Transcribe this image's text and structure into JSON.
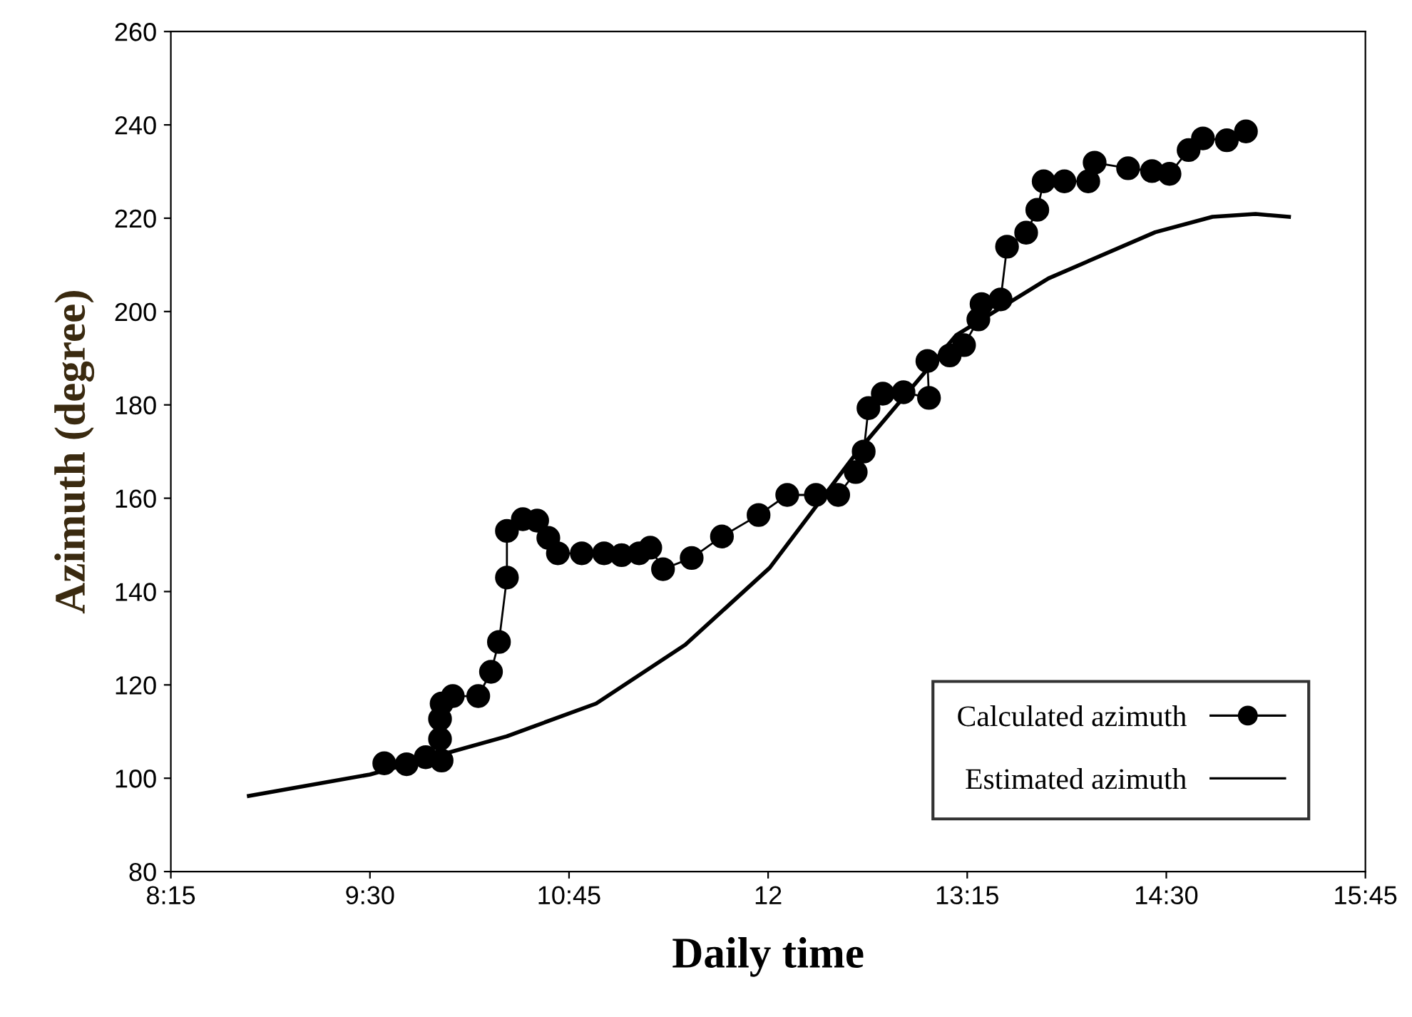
{
  "chart_data": {
    "type": "line",
    "xlabel": "Daily time",
    "ylabel": "Azimuth (degree)",
    "xlim": [
      8.25,
      15.75
    ],
    "xticks": [
      {
        "value": 8.25,
        "label": "8:15"
      },
      {
        "value": 9.5,
        "label": "9:30"
      },
      {
        "value": 10.75,
        "label": "10:45"
      },
      12,
      {
        "value": 13.25,
        "label": "13:15"
      },
      {
        "value": 14.5,
        "label": "14:30"
      },
      {
        "value": 15.75,
        "label": "15:45"
      }
    ],
    "ylim": [
      80,
      260
    ],
    "yticks": [
      80,
      100,
      120,
      140,
      160,
      180,
      200,
      220,
      240,
      260
    ],
    "grid": false,
    "legend": "bottom right",
    "series": [
      {
        "name": "Calculated azimuth",
        "color": "#000000",
        "marker": "circle",
        "line_style": "solid",
        "x": [
          9.59,
          9.73,
          9.85,
          9.95,
          9.94,
          9.94,
          9.95,
          10.02,
          10.18,
          10.26,
          10.31,
          10.36,
          10.36,
          10.46,
          10.55,
          10.62,
          10.68,
          10.83,
          10.97,
          11.08,
          11.19,
          11.26,
          11.34,
          11.52,
          11.71,
          11.94,
          12.12,
          12.3,
          12.44,
          12.55,
          12.6,
          12.63,
          12.72,
          12.85,
          13.01,
          13.0,
          13.14,
          13.23,
          13.32,
          13.34,
          13.46,
          13.5,
          13.62,
          13.69,
          13.73,
          13.86,
          14.01,
          14.05,
          14.26,
          14.41,
          14.52,
          14.64,
          14.73,
          14.88,
          15.0
        ],
        "values": [
          103.2,
          103,
          104.5,
          103.8,
          108.4,
          112.7,
          116,
          117.6,
          117.6,
          122.8,
          129.2,
          143,
          153,
          155.5,
          155.2,
          151.5,
          148.2,
          148.2,
          148.2,
          147.8,
          148.2,
          149.4,
          144.8,
          147.2,
          151.8,
          156.4,
          160.7,
          160.7,
          160.7,
          165.6,
          170,
          179.3,
          182.4,
          182.7,
          181.5,
          189.4,
          190.6,
          192.8,
          198.3,
          201.6,
          202.6,
          213.9,
          216.9,
          221.8,
          227.9,
          227.9,
          227.9,
          231.9,
          230.7,
          230.1,
          229.5,
          234.6,
          237.1,
          236.7,
          238.6
        ]
      },
      {
        "name": "Estimated azimuth",
        "color": "#000000",
        "marker": "none",
        "line_style": "solid",
        "x": [
          8.74,
          9.5,
          10.36,
          10.92,
          11.48,
          12.01,
          12.55,
          13.18,
          13.76,
          14.43,
          14.79,
          15.06,
          15.27
        ],
        "values": [
          96.2,
          100.8,
          109,
          116,
          128.6,
          145.1,
          169.5,
          194.9,
          207.1,
          217,
          220.3,
          220.9,
          220.3
        ]
      }
    ]
  }
}
